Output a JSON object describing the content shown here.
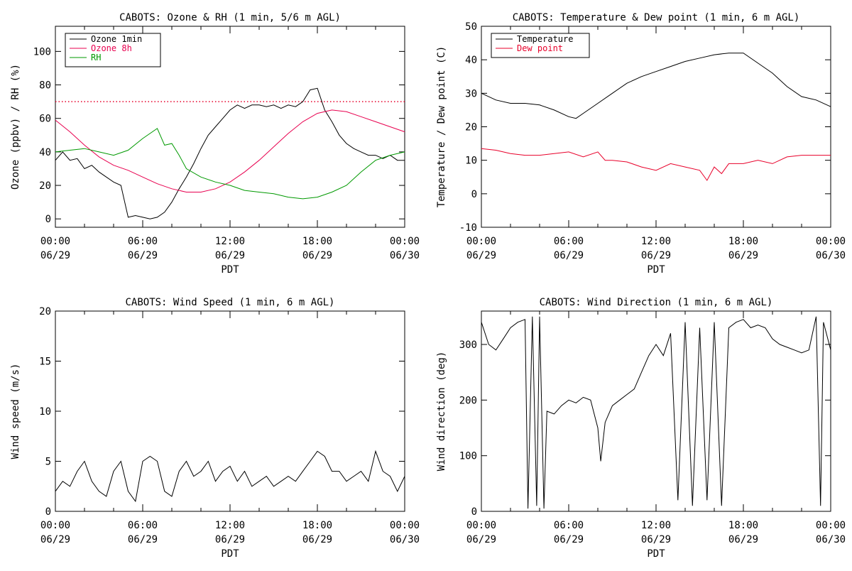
{
  "x_axis": {
    "tick_labels": [
      [
        "00:00",
        "06/29"
      ],
      [
        "06:00",
        "06/29"
      ],
      [
        "12:00",
        "06/29"
      ],
      [
        "18:00",
        "06/29"
      ],
      [
        "00:00",
        "06/30"
      ]
    ]
  },
  "chart_data": [
    {
      "type": "line",
      "title": "CABOTS: Ozone & RH (1 min, 5/6 m AGL)",
      "xlabel": "PDT",
      "ylabel": "Ozone (ppbv) / RH (%)",
      "xlim": [
        "06/29 00:00",
        "06/30 00:00"
      ],
      "ylim": [
        -5,
        115
      ],
      "yticks": [
        0,
        20,
        40,
        60,
        80,
        100
      ],
      "legend": "top-left",
      "reference_line": {
        "y": 70,
        "style": "dotted",
        "color": "#e8002a"
      },
      "series": [
        {
          "name": "Ozone 1min",
          "color": "#000000",
          "x": [
            0,
            0.5,
            1,
            1.5,
            2,
            2.5,
            3,
            3.5,
            4,
            4.5,
            5,
            5.5,
            6,
            6.5,
            7,
            7.5,
            8,
            8.5,
            9,
            9.5,
            10,
            10.5,
            11,
            11.5,
            12,
            12.5,
            13,
            13.5,
            14,
            14.5,
            15,
            15.5,
            16,
            16.5,
            17,
            17.5,
            18,
            18.5,
            19,
            19.5,
            20,
            20.5,
            21,
            21.5,
            22,
            22.5,
            23,
            23.5,
            24
          ],
          "y": [
            35,
            40,
            35,
            36,
            30,
            32,
            28,
            25,
            22,
            20,
            1,
            2,
            1,
            0,
            1,
            4,
            10,
            18,
            25,
            33,
            42,
            50,
            55,
            60,
            65,
            68,
            66,
            68,
            68,
            67,
            68,
            66,
            68,
            67,
            70,
            77,
            78,
            65,
            58,
            50,
            45,
            42,
            40,
            38,
            38,
            36,
            38,
            35,
            35
          ]
        },
        {
          "name": "Ozone 8h",
          "color": "#e8004f",
          "x": [
            0,
            1,
            2,
            3,
            4,
            5,
            6,
            7,
            8,
            9,
            10,
            11,
            12,
            13,
            14,
            15,
            16,
            17,
            18,
            19,
            20,
            21,
            22,
            23,
            24
          ],
          "y": [
            59,
            52,
            44,
            37,
            32,
            29,
            25,
            21,
            18,
            16,
            16,
            18,
            22,
            28,
            35,
            43,
            51,
            58,
            63,
            65,
            64,
            61,
            58,
            55,
            52
          ]
        },
        {
          "name": "RH",
          "color": "#009900",
          "x": [
            0,
            1,
            2,
            3,
            4,
            5,
            6,
            7,
            7.5,
            8,
            8.5,
            9,
            10,
            11,
            12,
            13,
            14,
            15,
            16,
            17,
            18,
            19,
            20,
            21,
            22,
            23,
            24
          ],
          "y": [
            40,
            41,
            42,
            40,
            38,
            41,
            48,
            54,
            44,
            45,
            38,
            30,
            25,
            22,
            20,
            17,
            16,
            15,
            13,
            12,
            13,
            16,
            20,
            28,
            35,
            38,
            40
          ]
        }
      ]
    },
    {
      "type": "line",
      "title": "CABOTS: Temperature & Dew point (1 min, 6 m AGL)",
      "xlabel": "PDT",
      "ylabel": "Temperature / Dew point (C)",
      "xlim": [
        "06/29 00:00",
        "06/30 00:00"
      ],
      "ylim": [
        -10,
        50
      ],
      "yticks": [
        -10,
        0,
        10,
        20,
        30,
        40,
        50
      ],
      "legend": "top-left",
      "series": [
        {
          "name": "Temperature",
          "color": "#000000",
          "x": [
            0,
            1,
            2,
            3,
            4,
            5,
            6,
            6.5,
            7,
            8,
            9,
            10,
            11,
            12,
            13,
            14,
            15,
            16,
            17,
            18,
            19,
            20,
            21,
            22,
            23,
            24
          ],
          "y": [
            30,
            28,
            27,
            27,
            26.5,
            25,
            23,
            22.5,
            24,
            27,
            30,
            33,
            35,
            36.5,
            38,
            39.5,
            40.5,
            41.5,
            42,
            42,
            39,
            36,
            32,
            29,
            28,
            26
          ]
        },
        {
          "name": "Dew point",
          "color": "#e8002a",
          "x": [
            0,
            1,
            2,
            3,
            4,
            5,
            6,
            7,
            8,
            8.5,
            9,
            10,
            11,
            12,
            13,
            14,
            15,
            15.5,
            16,
            16.5,
            17,
            18,
            19,
            20,
            21,
            22,
            23,
            24
          ],
          "y": [
            13.5,
            13,
            12,
            11.5,
            11.5,
            12,
            12.5,
            11,
            12.5,
            10,
            10,
            9.5,
            8,
            7,
            9,
            8,
            7,
            4,
            8,
            6,
            9,
            9,
            10,
            9,
            11,
            11.5,
            11.5,
            11.5
          ]
        }
      ]
    },
    {
      "type": "line",
      "title": "CABOTS: Wind Speed (1 min, 6 m AGL)",
      "xlabel": "PDT",
      "ylabel": "Wind speed (m/s)",
      "xlim": [
        "06/29 00:00",
        "06/30 00:00"
      ],
      "ylim": [
        0,
        20
      ],
      "yticks": [
        0,
        5,
        10,
        15,
        20
      ],
      "series": [
        {
          "color": "#000000",
          "x": [
            0,
            0.5,
            1,
            1.5,
            2,
            2.5,
            3,
            3.5,
            4,
            4.5,
            5,
            5.5,
            6,
            6.5,
            7,
            7.5,
            8,
            8.5,
            9,
            9.5,
            10,
            10.5,
            11,
            11.5,
            12,
            12.5,
            13,
            13.5,
            14,
            14.5,
            15,
            15.5,
            16,
            16.5,
            17,
            17.5,
            18,
            18.5,
            19,
            19.5,
            20,
            20.5,
            21,
            21.5,
            22,
            22.5,
            23,
            23.5,
            24
          ],
          "y": [
            2,
            3,
            2.5,
            4,
            5,
            3,
            2,
            1.5,
            4,
            5,
            2,
            1,
            5,
            5.5,
            5,
            2,
            1.5,
            4,
            5,
            3.5,
            4,
            5,
            3,
            4,
            4.5,
            3,
            4,
            2.5,
            3,
            3.5,
            2.5,
            3,
            3.5,
            3,
            4,
            5,
            6,
            5.5,
            4,
            4,
            3,
            3.5,
            4,
            3,
            6,
            4,
            3.5,
            2,
            3.5
          ]
        }
      ]
    },
    {
      "type": "line",
      "title": "CABOTS: Wind Direction (1 min, 6 m AGL)",
      "xlabel": "PDT",
      "ylabel": "Wind direction (deg)",
      "xlim": [
        "06/29 00:00",
        "06/30 00:00"
      ],
      "ylim": [
        0,
        360
      ],
      "yticks": [
        0,
        100,
        200,
        300
      ],
      "series": [
        {
          "color": "#000000",
          "x": [
            0,
            0.5,
            1,
            1.5,
            2,
            2.5,
            3,
            3.2,
            3.5,
            3.8,
            4,
            4.3,
            4.5,
            5,
            5.5,
            6,
            6.5,
            7,
            7.5,
            8,
            8.2,
            8.5,
            9,
            9.5,
            10,
            10.5,
            11,
            11.5,
            12,
            12.5,
            13,
            13.5,
            14,
            14.5,
            15,
            15.5,
            16,
            16.5,
            17,
            17.5,
            18,
            18.5,
            19,
            19.5,
            20,
            20.5,
            21,
            21.5,
            22,
            22.5,
            23,
            23.3,
            23.5,
            24
          ],
          "y": [
            340,
            300,
            290,
            310,
            330,
            340,
            345,
            5,
            350,
            10,
            350,
            5,
            180,
            175,
            190,
            200,
            195,
            205,
            200,
            150,
            90,
            160,
            190,
            200,
            210,
            220,
            250,
            280,
            300,
            280,
            320,
            20,
            340,
            10,
            330,
            20,
            340,
            10,
            330,
            340,
            345,
            330,
            335,
            330,
            310,
            300,
            295,
            290,
            285,
            290,
            350,
            10,
            340,
            290
          ]
        }
      ]
    }
  ]
}
